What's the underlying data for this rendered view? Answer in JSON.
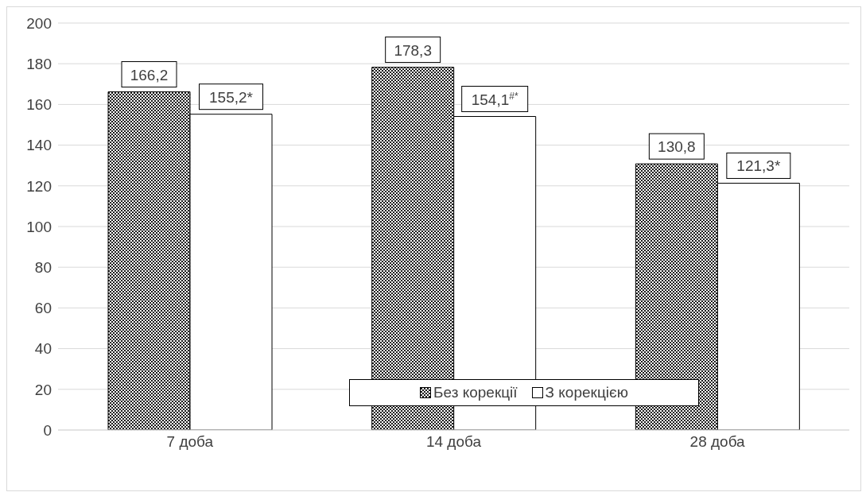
{
  "chart_data": {
    "type": "bar",
    "categories": [
      "7 доба",
      "14 доба",
      "28 доба"
    ],
    "series": [
      {
        "name": "Без корекції",
        "color": "#000000",
        "values": [
          166.2,
          178.3,
          130.8
        ],
        "value_labels": [
          "166,2",
          "178,3",
          "130,8"
        ]
      },
      {
        "name": "З корекцією",
        "color": "#ffffff",
        "values": [
          155.2,
          154.1,
          121.3
        ],
        "value_labels": [
          "155,2*",
          "154,1$^{#*}$",
          "121,3*"
        ]
      }
    ],
    "ylim": [
      0,
      200
    ],
    "yticks": [
      0,
      20,
      40,
      60,
      80,
      100,
      120,
      140,
      160,
      180,
      200
    ],
    "grid": "y",
    "legend": "bottom"
  }
}
